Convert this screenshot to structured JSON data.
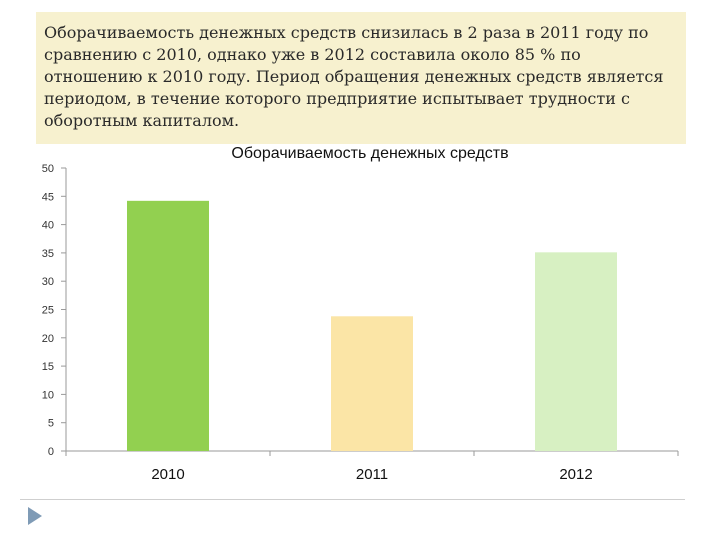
{
  "slide": {
    "text": "Оборачиваемость денежных средств снизилась в 2 раза в 2011 году по сравнению с 2010, однако уже в 2012 составила около 85 % по отношению к 2010 году. Период обращения денежных средств является периодом, в течение которого предприятие испытывает трудности с оборотным капиталом."
  },
  "chart_data": {
    "type": "bar",
    "title": "Оборачиваемость денежных средств",
    "categories": [
      "2010",
      "2011",
      "2012"
    ],
    "values": [
      44.2,
      23.8,
      35.1
    ],
    "colors": [
      "#92d050",
      "#fbe5a6",
      "#d7f0c2"
    ],
    "ylim": [
      0,
      50
    ],
    "yticks": [
      0,
      5,
      10,
      15,
      20,
      25,
      30,
      35,
      40,
      45,
      50
    ],
    "grid": false,
    "legend": "none"
  }
}
